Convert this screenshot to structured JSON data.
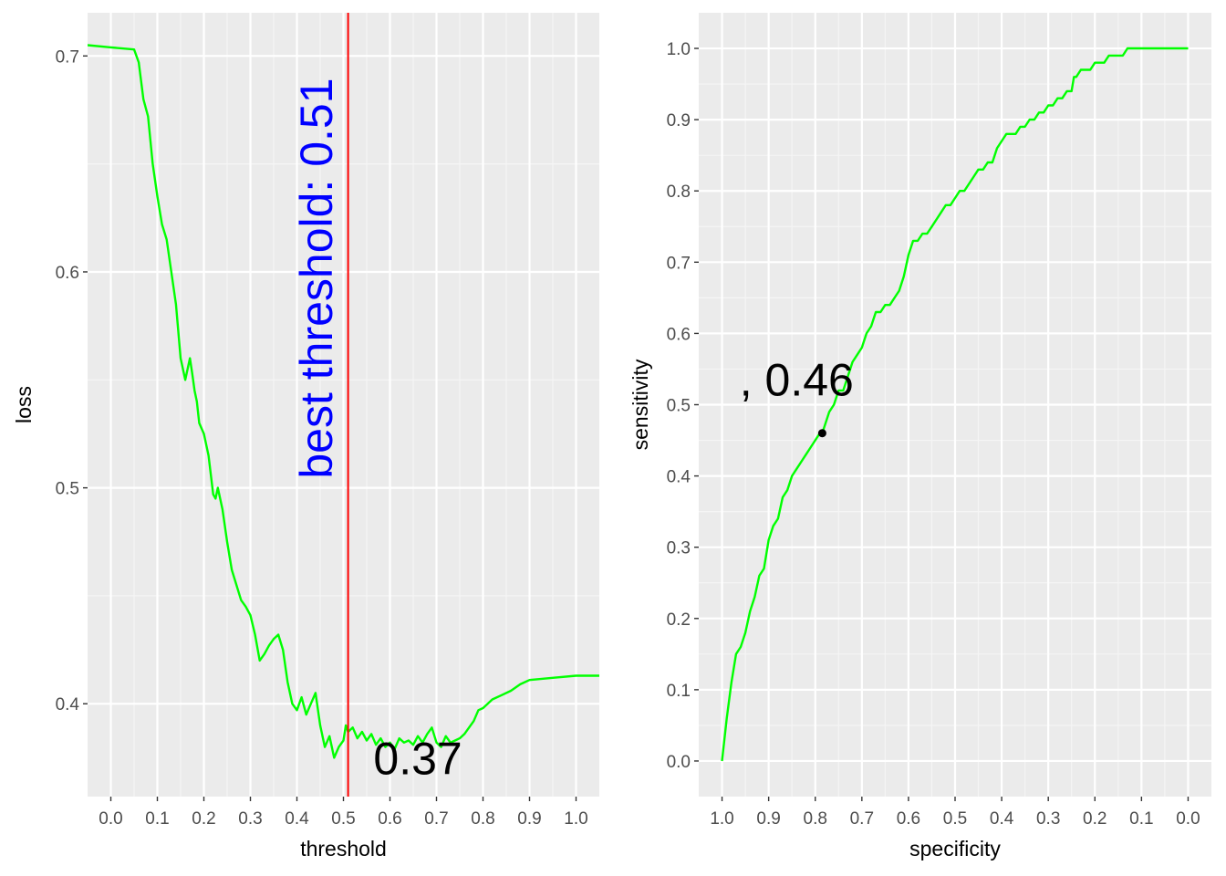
{
  "colors": {
    "panel_bg": "#EBEBEB",
    "grid_major": "#FFFFFF",
    "grid_minor": "#F5F5F5",
    "curve": "#00FF00",
    "threshold_line": "#FF0000",
    "annotation_blue": "#0000FF",
    "annotation_black": "#000000",
    "point": "#000000"
  },
  "chart_data": [
    {
      "type": "line",
      "xlabel": "threshold",
      "ylabel": "loss",
      "xlim": [
        -0.05,
        1.05
      ],
      "ylim": [
        0.357,
        0.72
      ],
      "x_ticks": [
        "0.0",
        "0.1",
        "0.2",
        "0.3",
        "0.4",
        "0.5",
        "0.6",
        "0.7",
        "0.8",
        "0.9",
        "1.0"
      ],
      "y_ticks": [
        "0.4",
        "0.5",
        "0.6",
        "0.7"
      ],
      "grid": true,
      "vline": {
        "x": 0.51
      },
      "annotations": [
        {
          "text": "best threshold: 0.51",
          "x": 0.45,
          "y": 0.597,
          "rotate": -90,
          "color": "blue"
        },
        {
          "text": "0.37",
          "x": 0.66,
          "y": 0.373,
          "color": "black"
        }
      ],
      "series": [
        {
          "x": [
            -0.05,
            0.0,
            0.05,
            0.06,
            0.07,
            0.08,
            0.09,
            0.1,
            0.11,
            0.12,
            0.13,
            0.14,
            0.15,
            0.16,
            0.17,
            0.175,
            0.18,
            0.185,
            0.19,
            0.2,
            0.21,
            0.22,
            0.225,
            0.23,
            0.24,
            0.25,
            0.26,
            0.27,
            0.28,
            0.29,
            0.3,
            0.31,
            0.32,
            0.33,
            0.34,
            0.35,
            0.36,
            0.37,
            0.38,
            0.39,
            0.4,
            0.41,
            0.42,
            0.43,
            0.44,
            0.45,
            0.46,
            0.47,
            0.48,
            0.49,
            0.5,
            0.505,
            0.51,
            0.52,
            0.53,
            0.54,
            0.55,
            0.56,
            0.57,
            0.58,
            0.59,
            0.6,
            0.61,
            0.62,
            0.63,
            0.64,
            0.65,
            0.66,
            0.67,
            0.68,
            0.69,
            0.7,
            0.71,
            0.72,
            0.73,
            0.74,
            0.75,
            0.76,
            0.77,
            0.78,
            0.79,
            0.8,
            0.82,
            0.84,
            0.86,
            0.88,
            0.9,
            0.95,
            1.0,
            1.05
          ],
          "y": [
            0.705,
            0.704,
            0.703,
            0.697,
            0.68,
            0.672,
            0.65,
            0.635,
            0.622,
            0.615,
            0.6,
            0.585,
            0.56,
            0.55,
            0.56,
            0.553,
            0.545,
            0.54,
            0.53,
            0.525,
            0.515,
            0.497,
            0.495,
            0.5,
            0.49,
            0.475,
            0.462,
            0.455,
            0.448,
            0.445,
            0.441,
            0.432,
            0.42,
            0.423,
            0.427,
            0.43,
            0.432,
            0.425,
            0.41,
            0.4,
            0.397,
            0.403,
            0.395,
            0.4,
            0.405,
            0.39,
            0.38,
            0.385,
            0.375,
            0.38,
            0.383,
            0.39,
            0.387,
            0.389,
            0.384,
            0.387,
            0.383,
            0.386,
            0.381,
            0.384,
            0.38,
            0.382,
            0.379,
            0.384,
            0.382,
            0.383,
            0.381,
            0.385,
            0.382,
            0.386,
            0.389,
            0.382,
            0.38,
            0.385,
            0.382,
            0.383,
            0.384,
            0.386,
            0.389,
            0.392,
            0.397,
            0.398,
            0.402,
            0.404,
            0.406,
            0.409,
            0.411,
            0.412,
            0.413,
            0.413
          ]
        }
      ]
    },
    {
      "type": "line",
      "xlabel": "specificity",
      "ylabel": "sensitivity",
      "xlim": [
        1.05,
        -0.05
      ],
      "ylim": [
        -0.05,
        1.05
      ],
      "x_ticks": [
        "1.0",
        "0.9",
        "0.8",
        "0.7",
        "0.6",
        "0.5",
        "0.4",
        "0.3",
        "0.2",
        "0.1",
        "0.0"
      ],
      "y_ticks": [
        "0.0",
        "0.1",
        "0.2",
        "0.3",
        "0.4",
        "0.5",
        "0.6",
        "0.7",
        "0.8",
        "0.9",
        "1.0"
      ],
      "grid": true,
      "point": {
        "x": 0.785,
        "y": 0.46
      },
      "annotations": [
        {
          "text": ", 0.46",
          "x": 0.84,
          "y": 0.53,
          "color": "black"
        }
      ],
      "series": [
        {
          "x": [
            1.0,
            0.99,
            0.98,
            0.97,
            0.96,
            0.95,
            0.94,
            0.93,
            0.92,
            0.91,
            0.9,
            0.89,
            0.88,
            0.87,
            0.86,
            0.85,
            0.84,
            0.83,
            0.82,
            0.81,
            0.8,
            0.79,
            0.785,
            0.77,
            0.76,
            0.75,
            0.74,
            0.73,
            0.72,
            0.71,
            0.7,
            0.69,
            0.68,
            0.67,
            0.66,
            0.65,
            0.64,
            0.63,
            0.62,
            0.61,
            0.6,
            0.59,
            0.58,
            0.57,
            0.56,
            0.55,
            0.54,
            0.53,
            0.52,
            0.51,
            0.5,
            0.49,
            0.48,
            0.47,
            0.46,
            0.45,
            0.44,
            0.43,
            0.42,
            0.41,
            0.4,
            0.39,
            0.38,
            0.37,
            0.36,
            0.35,
            0.34,
            0.33,
            0.32,
            0.31,
            0.3,
            0.29,
            0.28,
            0.27,
            0.26,
            0.25,
            0.245,
            0.24,
            0.23,
            0.22,
            0.21,
            0.2,
            0.19,
            0.18,
            0.17,
            0.16,
            0.15,
            0.14,
            0.13,
            0.12,
            0.11,
            0.1,
            0.09,
            0.05,
            0.0
          ],
          "y": [
            0.0,
            0.06,
            0.11,
            0.15,
            0.16,
            0.18,
            0.21,
            0.23,
            0.26,
            0.27,
            0.31,
            0.33,
            0.34,
            0.37,
            0.38,
            0.4,
            0.41,
            0.42,
            0.43,
            0.44,
            0.45,
            0.46,
            0.46,
            0.49,
            0.5,
            0.52,
            0.52,
            0.54,
            0.56,
            0.57,
            0.58,
            0.6,
            0.61,
            0.63,
            0.63,
            0.64,
            0.64,
            0.65,
            0.66,
            0.68,
            0.71,
            0.73,
            0.73,
            0.74,
            0.74,
            0.75,
            0.76,
            0.77,
            0.78,
            0.78,
            0.79,
            0.8,
            0.8,
            0.81,
            0.82,
            0.83,
            0.83,
            0.84,
            0.84,
            0.86,
            0.87,
            0.88,
            0.88,
            0.88,
            0.89,
            0.89,
            0.9,
            0.9,
            0.91,
            0.91,
            0.92,
            0.92,
            0.93,
            0.93,
            0.94,
            0.94,
            0.96,
            0.96,
            0.97,
            0.97,
            0.97,
            0.98,
            0.98,
            0.98,
            0.99,
            0.99,
            0.99,
            0.99,
            1.0,
            1.0,
            1.0,
            1.0,
            1.0,
            1.0,
            1.0
          ]
        }
      ]
    }
  ]
}
